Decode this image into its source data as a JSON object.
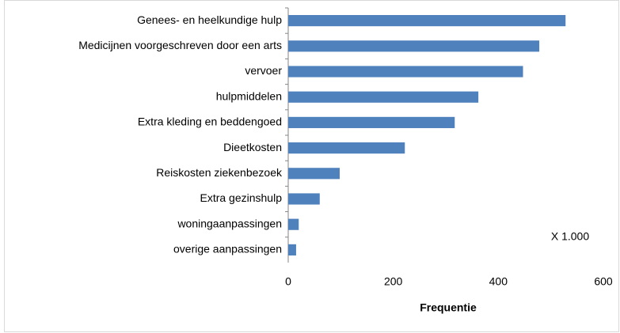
{
  "chart_data": {
    "type": "hbar",
    "categories": [
      "Genees- en heelkundige hulp",
      "Medicijnen voorgeschreven door een arts",
      "vervoer",
      "hulpmiddelen",
      "Extra kleding en beddengoed",
      "Dieetkosten",
      "Reiskosten ziekenbezoek",
      "Extra gezinshulp",
      "woningaanpassingen",
      "overige aanpassingen"
    ],
    "values": [
      528,
      478,
      447,
      362,
      317,
      222,
      98,
      60,
      20,
      15
    ],
    "color": "#4f81bd",
    "x_label": "Frequentie",
    "annotation": "X 1.000",
    "xlim": [
      0,
      600
    ],
    "xticks": [
      0,
      200,
      400,
      600
    ]
  }
}
